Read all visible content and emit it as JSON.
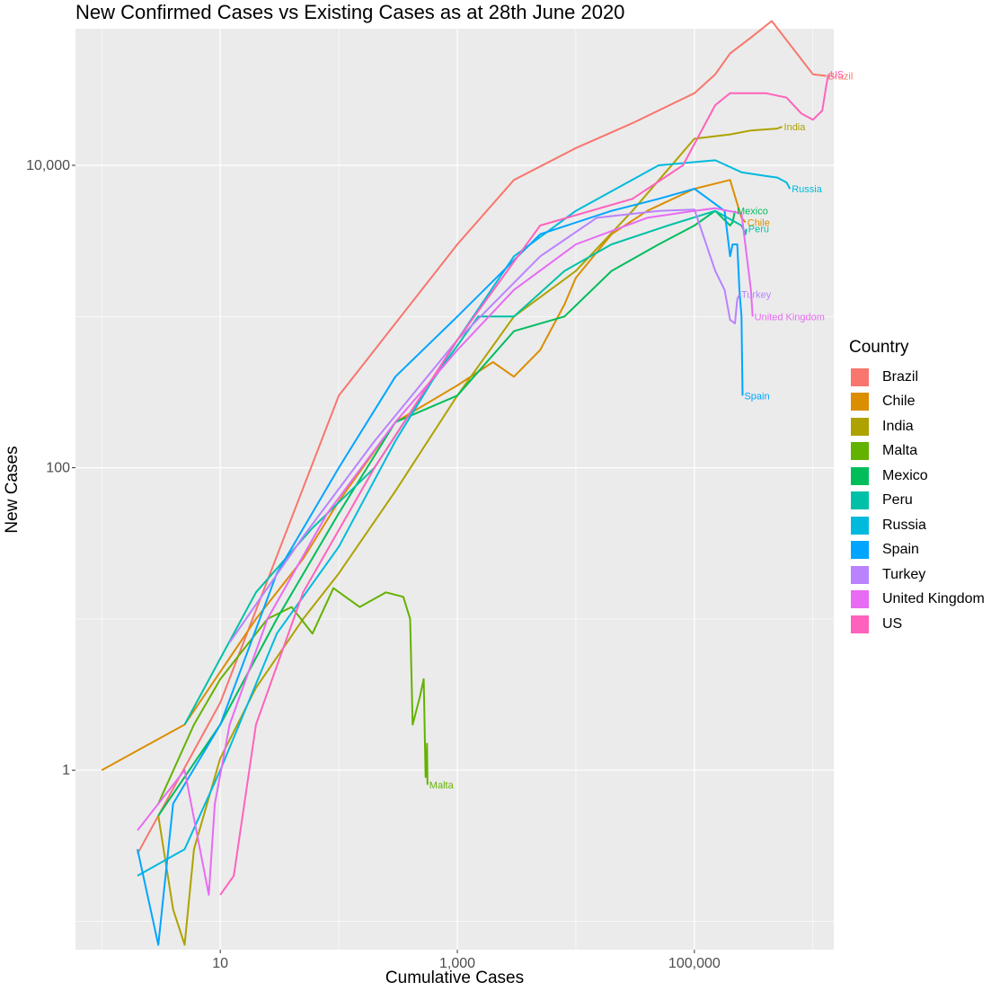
{
  "chart_data": {
    "type": "line",
    "title": "New Confirmed Cases vs Existing Cases as at 28th June 2020",
    "xlabel": "Cumulative Cases",
    "ylabel": "New Cases",
    "x_scale": "log10",
    "y_scale": "log10",
    "xlim": [
      0.6,
      1500000
    ],
    "ylim": [
      0.065,
      80000
    ],
    "x_ticks": [
      10,
      1000,
      100000
    ],
    "x_tick_labels": [
      "10",
      "1,000",
      "100,000"
    ],
    "y_ticks": [
      1,
      100,
      10000
    ],
    "y_tick_labels": [
      "1",
      "100",
      "10,000"
    ],
    "grid": true,
    "legend_title": "Country",
    "legend_position": "right",
    "series": [
      {
        "name": "Brazil",
        "color": "#F8766D",
        "end_label": "Brazil",
        "points": [
          [
            2,
            0.28
          ],
          [
            10,
            2.8
          ],
          [
            100,
            300
          ],
          [
            1000,
            3000
          ],
          [
            3000,
            8000
          ],
          [
            10000,
            13000
          ],
          [
            30000,
            19000
          ],
          [
            100000,
            30000
          ],
          [
            150000,
            40000
          ],
          [
            200000,
            55000
          ],
          [
            300000,
            70000
          ],
          [
            450000,
            90000
          ],
          [
            1000000,
            40000
          ],
          [
            1300000,
            39000
          ]
        ]
      },
      {
        "name": "Chile",
        "color": "#DB8E00",
        "end_label": "Chile",
        "points": [
          [
            1,
            1
          ],
          [
            5,
            2
          ],
          [
            20,
            10
          ],
          [
            50,
            25
          ],
          [
            100,
            60
          ],
          [
            300,
            200
          ],
          [
            1000,
            350
          ],
          [
            2000,
            500
          ],
          [
            3000,
            400
          ],
          [
            5000,
            600
          ],
          [
            8000,
            1200
          ],
          [
            10000,
            1800
          ],
          [
            20000,
            3500
          ],
          [
            40000,
            5000
          ],
          [
            100000,
            7000
          ],
          [
            200000,
            8000
          ],
          [
            250000,
            4500
          ],
          [
            270000,
            4200
          ]
        ]
      },
      {
        "name": "India",
        "color": "#AEA200",
        "end_label": "India",
        "points": [
          [
            3,
            0.5
          ],
          [
            4,
            0.12
          ],
          [
            5,
            0.07
          ],
          [
            6,
            0.3
          ],
          [
            10,
            1.2
          ],
          [
            20,
            3.5
          ],
          [
            50,
            10
          ],
          [
            100,
            20
          ],
          [
            300,
            70
          ],
          [
            1000,
            300
          ],
          [
            3000,
            1000
          ],
          [
            10000,
            2000
          ],
          [
            30000,
            5000
          ],
          [
            100000,
            15000
          ],
          [
            200000,
            16000
          ],
          [
            300000,
            17000
          ],
          [
            500000,
            17500
          ],
          [
            550000,
            18000
          ]
        ]
      },
      {
        "name": "Malta",
        "color": "#64B200",
        "end_label": "Malta",
        "points": [
          [
            3,
            0.6
          ],
          [
            6,
            2
          ],
          [
            10,
            4
          ],
          [
            25,
            10
          ],
          [
            40,
            12
          ],
          [
            60,
            8
          ],
          [
            90,
            16
          ],
          [
            150,
            12
          ],
          [
            250,
            15
          ],
          [
            350,
            14
          ],
          [
            400,
            10
          ],
          [
            420,
            2
          ],
          [
            480,
            3
          ],
          [
            520,
            4
          ],
          [
            540,
            0.9
          ],
          [
            550,
            1
          ],
          [
            555,
            1.5
          ],
          [
            560,
            0.8
          ]
        ]
      },
      {
        "name": "Mexico",
        "color": "#00BD5C",
        "end_label": "Mexico",
        "points": [
          [
            3,
            0.5
          ],
          [
            10,
            2
          ],
          [
            30,
            10
          ],
          [
            100,
            50
          ],
          [
            300,
            200
          ],
          [
            1000,
            300
          ],
          [
            3000,
            800
          ],
          [
            8000,
            1000
          ],
          [
            20000,
            2000
          ],
          [
            50000,
            3000
          ],
          [
            100000,
            4000
          ],
          [
            150000,
            5000
          ],
          [
            200000,
            4000
          ],
          [
            210000,
            4200
          ],
          [
            220000,
            5000
          ]
        ]
      },
      {
        "name": "Peru",
        "color": "#00C1A7",
        "end_label": "Peru",
        "points": [
          [
            5,
            2
          ],
          [
            20,
            15
          ],
          [
            60,
            40
          ],
          [
            200,
            100
          ],
          [
            500,
            300
          ],
          [
            1500,
            1000
          ],
          [
            3000,
            1000
          ],
          [
            8000,
            2000
          ],
          [
            20000,
            3000
          ],
          [
            60000,
            4000
          ],
          [
            150000,
            5000
          ],
          [
            250000,
            4000
          ],
          [
            270000,
            3500
          ],
          [
            275000,
            3800
          ]
        ]
      },
      {
        "name": "Russia",
        "color": "#00BADE",
        "end_label": "Russia",
        "points": [
          [
            2,
            0.2
          ],
          [
            5,
            0.3
          ],
          [
            10,
            1
          ],
          [
            30,
            8
          ],
          [
            100,
            30
          ],
          [
            300,
            150
          ],
          [
            1000,
            700
          ],
          [
            3000,
            2500
          ],
          [
            10000,
            5000
          ],
          [
            50000,
            10000
          ],
          [
            150000,
            10800
          ],
          [
            250000,
            9000
          ],
          [
            400000,
            8500
          ],
          [
            500000,
            8300
          ],
          [
            600000,
            7700
          ],
          [
            640000,
            7000
          ]
        ]
      },
      {
        "name": "Spain",
        "color": "#00A5FF",
        "end_label": "Spain",
        "points": [
          [
            2,
            0.3
          ],
          [
            3,
            0.07
          ],
          [
            4,
            0.6
          ],
          [
            10,
            2
          ],
          [
            30,
            20
          ],
          [
            100,
            100
          ],
          [
            300,
            400
          ],
          [
            1000,
            1000
          ],
          [
            5000,
            3500
          ],
          [
            20000,
            5000
          ],
          [
            50000,
            6000
          ],
          [
            100000,
            7000
          ],
          [
            180000,
            5000
          ],
          [
            200000,
            2500
          ],
          [
            210000,
            3000
          ],
          [
            230000,
            3000
          ],
          [
            240000,
            1500
          ],
          [
            250000,
            1000
          ],
          [
            255000,
            300
          ]
        ]
      },
      {
        "name": "Turkey",
        "color": "#B983FF",
        "end_label": "Turkey",
        "points": [
          [
            12,
            7
          ],
          [
            50,
            35
          ],
          [
            200,
            150
          ],
          [
            1000,
            700
          ],
          [
            5000,
            2500
          ],
          [
            15000,
            4500
          ],
          [
            50000,
            5000
          ],
          [
            100000,
            5100
          ],
          [
            150000,
            2000
          ],
          [
            180000,
            1500
          ],
          [
            200000,
            950
          ],
          [
            220000,
            900
          ],
          [
            230000,
            1300
          ],
          [
            240000,
            1400
          ]
        ]
      },
      {
        "name": "United Kingdom",
        "color": "#E76BF3",
        "end_label": "United Kingdom",
        "points": [
          [
            2,
            0.4
          ],
          [
            5,
            1
          ],
          [
            8,
            0.15
          ],
          [
            9,
            0.6
          ],
          [
            12,
            2
          ],
          [
            25,
            10
          ],
          [
            80,
            50
          ],
          [
            300,
            200
          ],
          [
            1000,
            600
          ],
          [
            3000,
            1500
          ],
          [
            10000,
            3000
          ],
          [
            40000,
            4500
          ],
          [
            100000,
            5000
          ],
          [
            150000,
            5200
          ],
          [
            250000,
            4800
          ],
          [
            300000,
            1500
          ],
          [
            310000,
            1000
          ]
        ]
      },
      {
        "name": "US",
        "color": "#FF62BC",
        "end_label": "US",
        "points": [
          [
            10,
            0.15
          ],
          [
            13,
            0.2
          ],
          [
            20,
            2
          ],
          [
            50,
            15
          ],
          [
            200,
            100
          ],
          [
            1000,
            700
          ],
          [
            5000,
            4000
          ],
          [
            30000,
            6000
          ],
          [
            80000,
            10000
          ],
          [
            150000,
            25000
          ],
          [
            200000,
            30000
          ],
          [
            400000,
            30000
          ],
          [
            600000,
            28000
          ],
          [
            800000,
            22000
          ],
          [
            1000000,
            20000
          ],
          [
            1200000,
            23000
          ],
          [
            1300000,
            34000
          ],
          [
            1350000,
            40000
          ]
        ]
      }
    ]
  }
}
